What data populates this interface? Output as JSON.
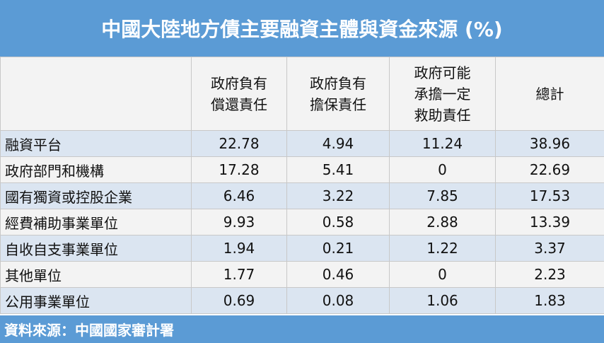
{
  "header": {
    "title": "中國大陸地方債主要融資主體與資金來源 (%)"
  },
  "table": {
    "columns": [
      [
        "政府負有",
        "償還責任"
      ],
      [
        "政府負有",
        "擔保責任"
      ],
      [
        "政府可能",
        "承擔一定",
        "救助責任"
      ],
      [
        "總計"
      ]
    ],
    "rows": [
      [
        "融資平台",
        "22.78",
        "4.94",
        "11.24",
        "38.96"
      ],
      [
        "政府部門和機構",
        "17.28",
        "5.41",
        "0",
        "22.69"
      ],
      [
        "國有獨資或控股企業",
        "6.46",
        "3.22",
        "7.85",
        "17.53"
      ],
      [
        "經費補助事業單位",
        "9.93",
        "0.58",
        "2.88",
        "13.39"
      ],
      [
        "自收自支事業單位",
        "1.94",
        "0.21",
        "1.22",
        "3.37"
      ],
      [
        "其他單位",
        "1.77",
        "0.46",
        "0",
        "2.23"
      ],
      [
        "公用事業單位",
        "0.69",
        "0.08",
        "1.06",
        "1.83"
      ]
    ]
  },
  "footer": {
    "source": "資料來源：中國國家審計署"
  }
}
